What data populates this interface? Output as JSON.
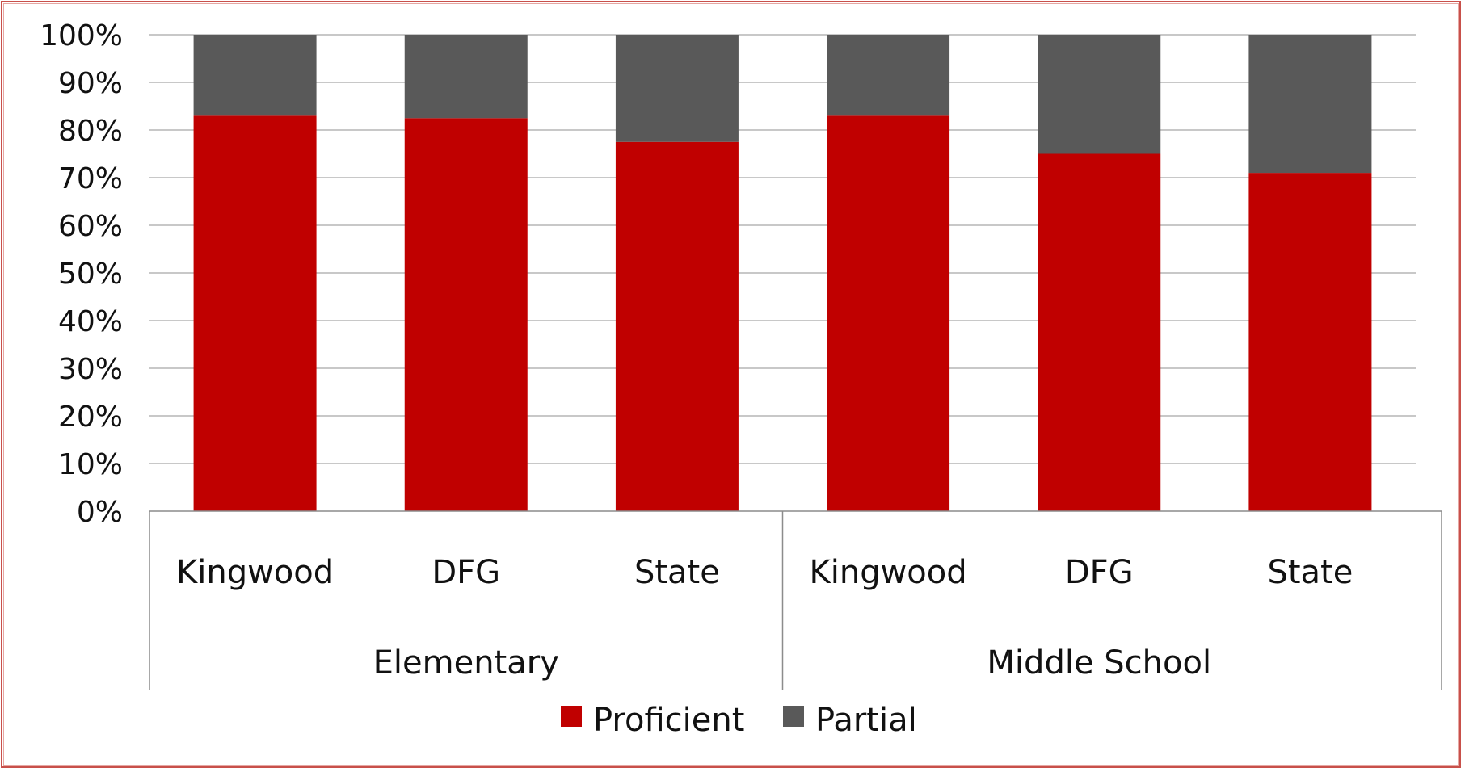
{
  "chart_data": {
    "type": "bar",
    "stacked": true,
    "title": "",
    "xlabel": "",
    "ylabel": "",
    "ylim": [
      0,
      100
    ],
    "y_tick_step": 10,
    "y_tick_format": "percent",
    "y_ticks": [
      "0%",
      "10%",
      "20%",
      "30%",
      "40%",
      "50%",
      "60%",
      "70%",
      "80%",
      "90%",
      "100%"
    ],
    "grid": true,
    "legend_position": "bottom",
    "categories": [
      "Kingwood",
      "DFG",
      "State",
      "Kingwood",
      "DFG",
      "State"
    ],
    "groups": [
      {
        "label": "Elementary",
        "members": [
          0,
          1,
          2
        ]
      },
      {
        "label": "Middle School",
        "members": [
          3,
          4,
          5
        ]
      }
    ],
    "series": [
      {
        "name": "Proficient",
        "color": "#c00000",
        "values": [
          83,
          82.5,
          77.5,
          83,
          75,
          71
        ]
      },
      {
        "name": "Partial",
        "color": "#595959",
        "values": [
          17,
          17.5,
          22.5,
          17,
          25,
          29
        ]
      }
    ]
  }
}
